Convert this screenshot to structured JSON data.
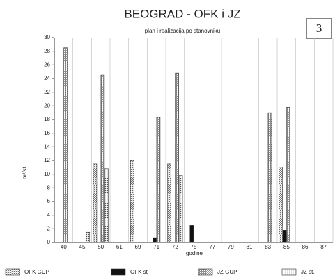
{
  "chart_data": {
    "type": "bar",
    "title": "BEOGRAD - OFK i JZ",
    "subtitle": "plan i realizacija po stanovniku",
    "figure_number": "3",
    "x_label": "godine",
    "y_label": "m²/st.",
    "categories": [
      "40",
      "45",
      "50",
      "61",
      "69",
      "71",
      "72",
      "75",
      "77",
      "79",
      "81",
      "83",
      "85",
      "86",
      "87"
    ],
    "series": [
      {
        "name": "OFK GUP",
        "color": "#555555",
        "pattern": "diagonal",
        "values": [
          null,
          null,
          11.5,
          null,
          12,
          null,
          11.5,
          null,
          null,
          null,
          null,
          null,
          11,
          null,
          null
        ]
      },
      {
        "name": "OFK st",
        "color": "#111111",
        "pattern": "solid",
        "values": [
          null,
          null,
          null,
          null,
          null,
          0.7,
          null,
          2.5,
          null,
          null,
          null,
          null,
          1.8,
          null,
          null
        ]
      },
      {
        "name": "JZ GUP",
        "color": "#555555",
        "pattern": "vertical",
        "values": [
          28.5,
          null,
          24.5,
          null,
          null,
          18.3,
          24.8,
          null,
          null,
          null,
          null,
          19,
          19.8,
          null,
          null
        ]
      },
      {
        "name": "JZ st.",
        "color": "#555555",
        "pattern": "dots",
        "values": [
          null,
          1.5,
          10.8,
          null,
          null,
          null,
          9.8,
          null,
          null,
          null,
          null,
          null,
          null,
          null,
          null
        ]
      }
    ],
    "ylim": [
      0,
      30
    ],
    "yticks": [
      0,
      2,
      4,
      6,
      8,
      10,
      12,
      14,
      16,
      18,
      20,
      22,
      24,
      26,
      28,
      30
    ],
    "grid": true
  }
}
